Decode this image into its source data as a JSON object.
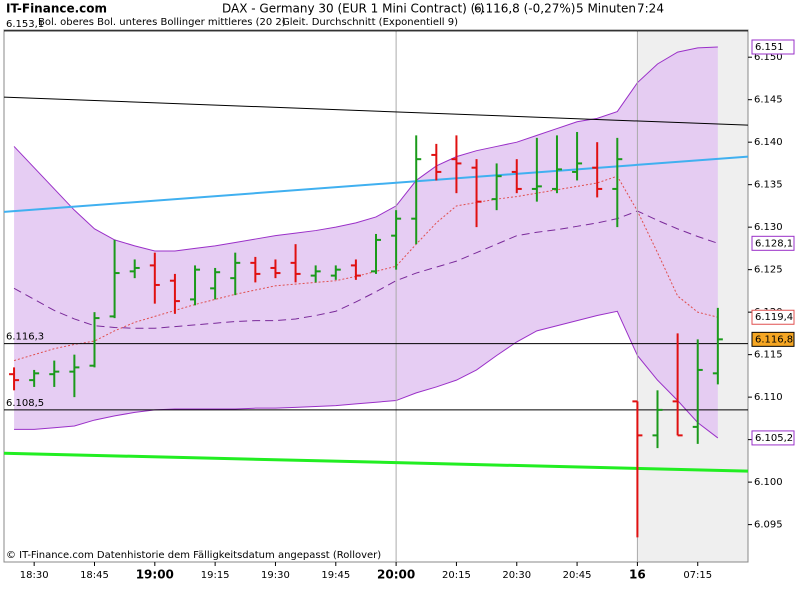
{
  "chart_data": {
    "type": "ohlc",
    "site": "IT-Finance.com",
    "title": "DAX - Germany 30 (EUR 1 Mini Contract) (-)",
    "quote": "6.116,8 (-0,27%)",
    "interval": "5 Minuten",
    "time": "7:24",
    "footer": "© IT-Finance.com Datenhistorie dem Fälligkeitsdatum angepasst (Rollover)",
    "categories": [
      null,
      null,
      null,
      null,
      null,
      null,
      null,
      null,
      null,
      null,
      null,
      null,
      null,
      null,
      null,
      null,
      null,
      null,
      null,
      null,
      null,
      null,
      null,
      null,
      null,
      null,
      null,
      null,
      null,
      null,
      null,
      null,
      null,
      null,
      null,
      null
    ],
    "xlim": [
      -0.5,
      36.5
    ],
    "xticks": [
      {
        "value": 1,
        "label": "18:30"
      },
      {
        "value": 4,
        "label": "18:45"
      },
      {
        "value": 7,
        "label": "19:00",
        "bold": true
      },
      {
        "value": 10,
        "label": "19:15"
      },
      {
        "value": 13,
        "label": "19:30"
      },
      {
        "value": 16,
        "label": "19:45"
      },
      {
        "value": 19,
        "label": "20:00",
        "bold": true
      },
      {
        "value": 22,
        "label": "20:15"
      },
      {
        "value": 25,
        "label": "20:30"
      },
      {
        "value": 28,
        "label": "20:45"
      },
      {
        "value": 31,
        "label": "16",
        "bold": true
      },
      {
        "value": 34,
        "label": "07:15"
      }
    ],
    "day_breaks": [
      19,
      31
    ],
    "shade_from": 31,
    "ylim": [
      6.0906,
      6.1532
    ],
    "yticks": [
      {
        "value": 6.095,
        "label": "6.095"
      },
      {
        "value": 6.1,
        "label": "6.100"
      },
      {
        "value": 6.105,
        "label": "6.105"
      },
      {
        "value": 6.11,
        "label": "6.110"
      },
      {
        "value": 6.115,
        "label": "6.115"
      },
      {
        "value": 6.12,
        "label": "6.120"
      },
      {
        "value": 6.125,
        "label": "6.125"
      },
      {
        "value": 6.13,
        "label": "6.130"
      },
      {
        "value": 6.135,
        "label": "6.135"
      },
      {
        "value": 6.14,
        "label": "6.140"
      },
      {
        "value": 6.145,
        "label": "6.145"
      },
      {
        "value": 6.15,
        "label": "6.150"
      }
    ],
    "up_color": "#1a9a1a",
    "down_color": "#e01010",
    "open": [
      6.1127,
      6.112,
      6.1127,
      6.113,
      6.1137,
      6.1195,
      6.1248,
      6.1255,
      6.1237,
      6.1215,
      6.1228,
      6.124,
      6.1258,
      6.1252,
      6.1258,
      6.1243,
      6.1243,
      6.1255,
      6.1248,
      6.129,
      6.131,
      6.1385,
      6.138,
      6.137,
      6.1333,
      6.1365,
      6.1345,
      6.1345,
      6.1365,
      6.137,
      6.1345,
      6.1095,
      6.1055,
      6.1095,
      6.1065,
      6.1128
    ],
    "high": [
      6.1135,
      6.1132,
      6.1143,
      6.115,
      6.12,
      6.1285,
      6.1262,
      6.127,
      6.1245,
      6.1255,
      6.1252,
      6.127,
      6.1265,
      6.1262,
      6.128,
      6.1255,
      6.1255,
      6.1262,
      6.1292,
      6.132,
      6.1408,
      6.1398,
      6.1408,
      6.138,
      6.1375,
      6.138,
      6.1405,
      6.1408,
      6.1412,
      6.14,
      6.1405,
      6.1095,
      6.1108,
      6.1175,
      6.1168,
      6.1205
    ],
    "low": [
      6.1108,
      6.1112,
      6.1112,
      6.11,
      6.1135,
      6.1193,
      6.124,
      6.121,
      6.1198,
      6.1208,
      6.1215,
      6.122,
      6.1235,
      6.124,
      6.1235,
      6.1235,
      6.1238,
      6.1238,
      6.1245,
      6.125,
      6.128,
      6.1355,
      6.134,
      6.13,
      6.132,
      6.134,
      6.133,
      6.134,
      6.1355,
      6.1335,
      6.13,
      6.0935,
      6.104,
      6.1055,
      6.1045,
      6.1115
    ],
    "close": [
      6.112,
      6.1128,
      6.113,
      6.1135,
      6.1193,
      6.1246,
      6.1252,
      6.1232,
      6.1213,
      6.125,
      6.1247,
      6.1258,
      6.1245,
      6.1246,
      6.1245,
      6.1248,
      6.125,
      6.1243,
      6.1285,
      6.131,
      6.138,
      6.1365,
      6.1375,
      6.133,
      6.136,
      6.1345,
      6.1348,
      6.1368,
      6.1375,
      6.1345,
      6.138,
      6.1055,
      6.1085,
      6.1055,
      6.1132,
      6.1168
    ],
    "last_label": "6.116,8",
    "bollinger": {
      "name": "Bol. oberes Bol. unteres Bollinger mittleres (20 2)",
      "color": "#9a30c8",
      "fill": "#e3c8f2",
      "upper": [
        6.1395,
        6.137,
        6.1345,
        6.132,
        6.1298,
        6.1285,
        6.1278,
        6.1272,
        6.1272,
        6.1275,
        6.1278,
        6.1282,
        6.1286,
        6.129,
        6.1293,
        6.1296,
        6.13,
        6.1305,
        6.1312,
        6.1325,
        6.1355,
        6.1372,
        6.1383,
        6.139,
        6.1395,
        6.14,
        6.1408,
        6.1416,
        6.1424,
        6.1428,
        6.1436,
        6.147,
        6.1492,
        6.1506,
        6.1511,
        6.1512
      ],
      "lower": [
        6.1062,
        6.1062,
        6.1064,
        6.1066,
        6.1073,
        6.1078,
        6.1082,
        6.1085,
        6.1086,
        6.1086,
        6.1086,
        6.1086,
        6.1087,
        6.1087,
        6.1088,
        6.1089,
        6.109,
        6.1092,
        6.1094,
        6.1096,
        6.1105,
        6.1112,
        6.112,
        6.1132,
        6.1149,
        6.1165,
        6.1178,
        6.1184,
        6.119,
        6.1196,
        6.1201,
        6.1149,
        6.112,
        6.1096,
        6.107,
        6.1052
      ],
      "middle": [
        6.1228,
        6.1215,
        6.1202,
        6.1192,
        6.1184,
        6.1182,
        6.1181,
        6.1181,
        6.1183,
        6.1185,
        6.1187,
        6.1189,
        6.119,
        6.119,
        6.1192,
        6.1196,
        6.1201,
        6.1212,
        6.1224,
        6.1237,
        6.1246,
        6.1253,
        6.126,
        6.127,
        6.128,
        6.129,
        6.1294,
        6.1297,
        6.1301,
        6.1305,
        6.131,
        6.1319,
        6.1308,
        6.1298,
        6.1289,
        6.1281
      ],
      "upper_label": "6.151",
      "middle_label": "6.128,1",
      "lower_label": "6.105,2"
    },
    "ema": {
      "name": "Gleit. Durchschnitt (Exponentiell 9)",
      "color": "#e05050",
      "values": [
        6.1143,
        6.115,
        6.1157,
        6.1162,
        6.1166,
        6.1178,
        6.1188,
        6.1195,
        6.1202,
        6.1209,
        6.1215,
        6.1221,
        6.1226,
        6.1231,
        6.1233,
        6.1235,
        6.1237,
        6.1242,
        6.1248,
        6.1254,
        6.128,
        6.1305,
        6.1325,
        6.1329,
        6.1333,
        6.1336,
        6.134,
        6.1344,
        6.1348,
        6.1352,
        6.136,
        6.1319,
        6.127,
        6.1219,
        6.12,
        6.1194
      ],
      "last_label": "6.119,4"
    },
    "trendlines": [
      {
        "color": "#000000",
        "width": 1,
        "x": [
          -0.5,
          36.5
        ],
        "values": [
          6.1453,
          6.142
        ]
      },
      {
        "color": "#40b0f0",
        "width": 2,
        "x": [
          -0.5,
          36.5
        ],
        "values": [
          6.1318,
          6.1383
        ]
      },
      {
        "color": "#22ee22",
        "width": 3,
        "x": [
          -0.5,
          36.5
        ],
        "values": [
          6.1034,
          6.1013
        ]
      }
    ],
    "levels": [
      {
        "value": 6.1531,
        "label": "6.153,1"
      },
      {
        "value": 6.1163,
        "label": "6.116,3"
      },
      {
        "value": 6.1085,
        "label": "6.108,5"
      }
    ]
  }
}
